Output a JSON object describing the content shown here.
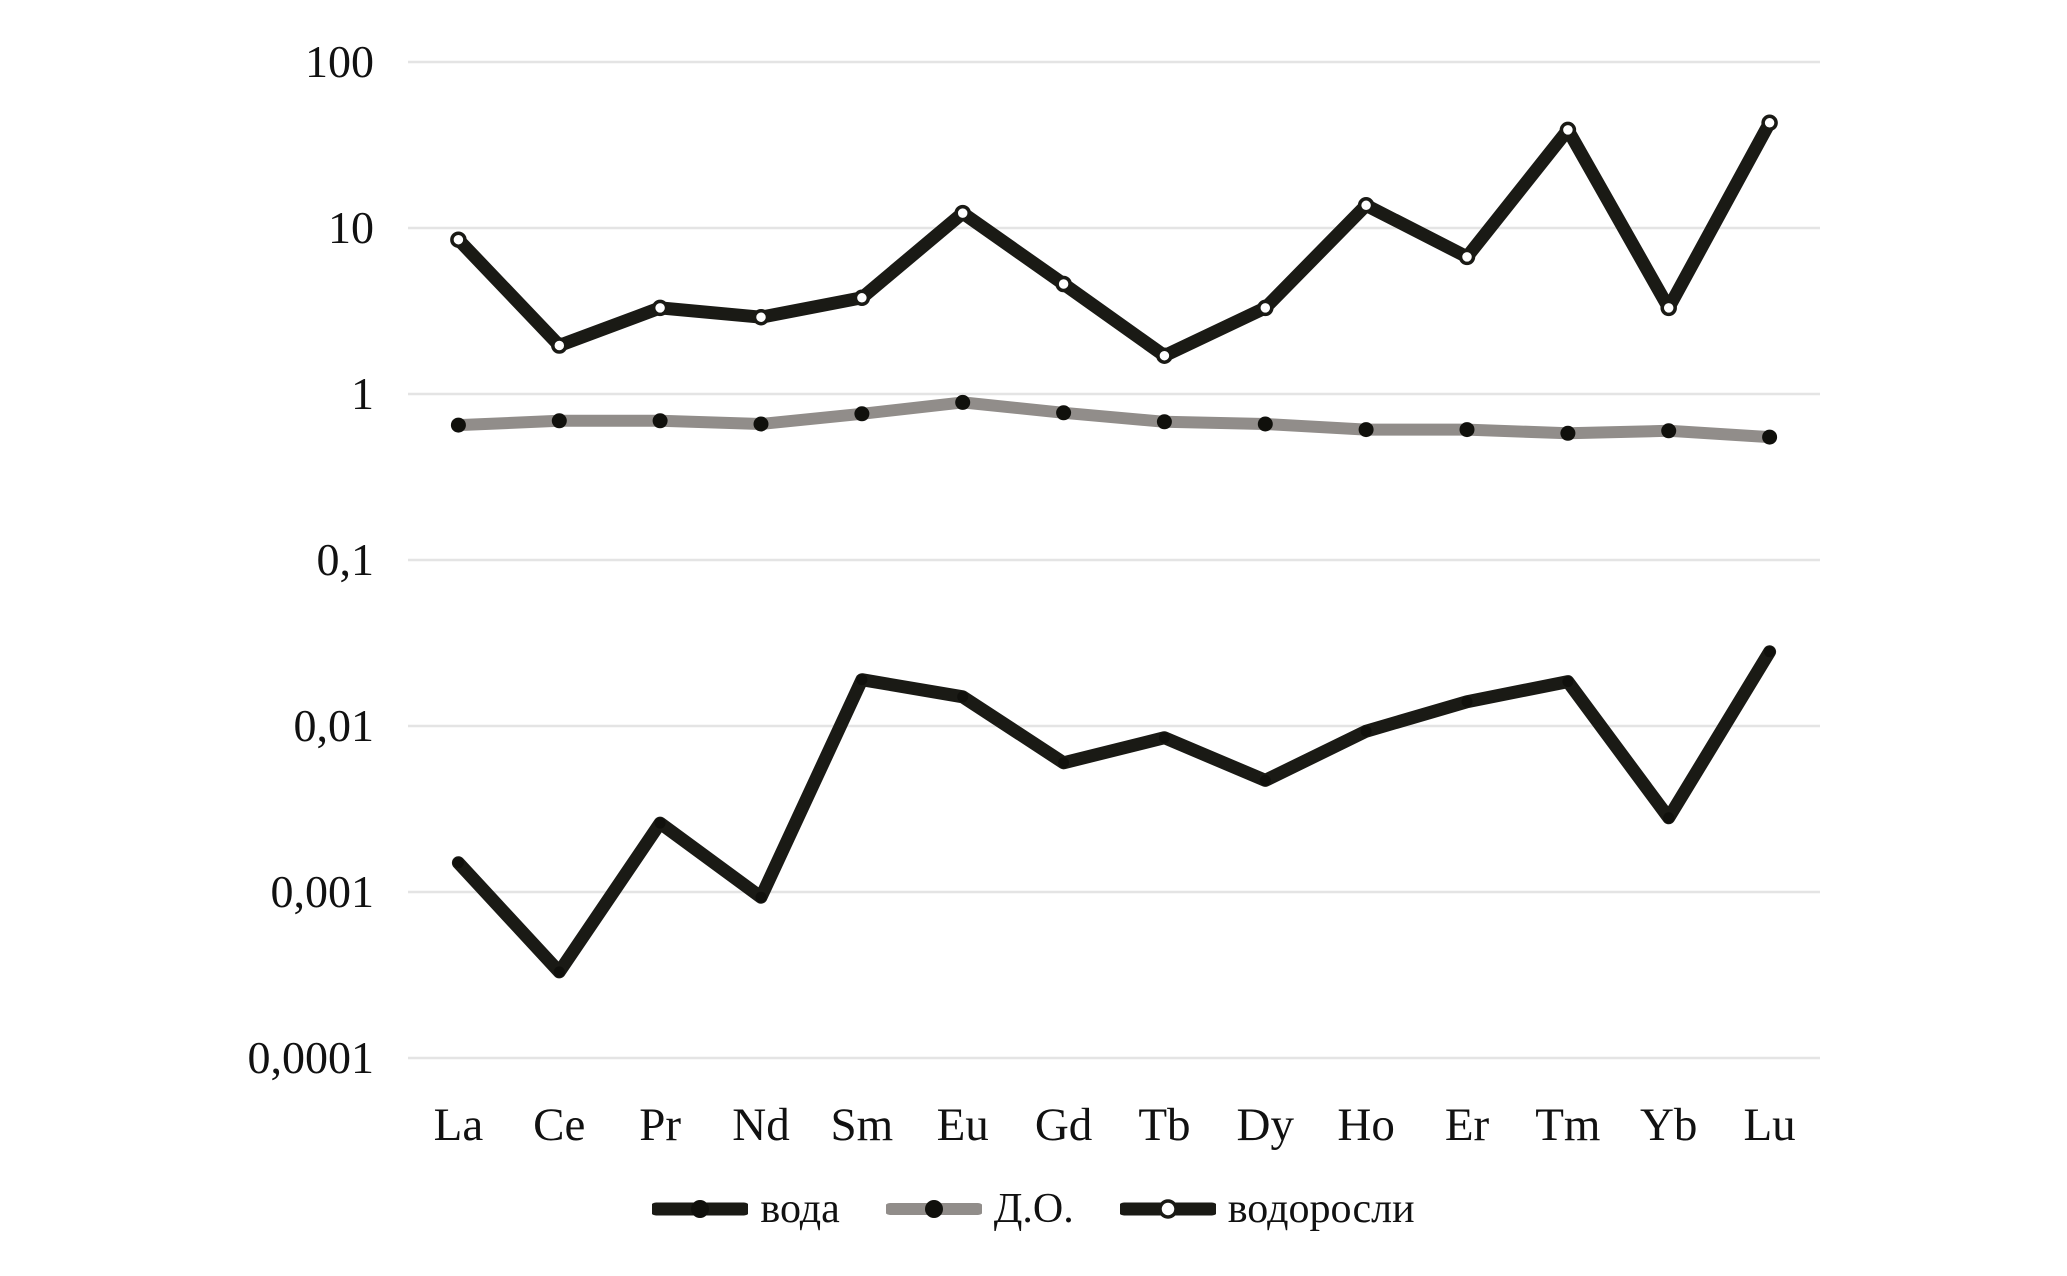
{
  "chart_data": {
    "type": "line",
    "title": "",
    "xlabel": "",
    "ylabel": "",
    "y_scale": "log",
    "grid": "horizontal-only",
    "gridline_color": "#e4e4e4",
    "background": "#ffffff",
    "categories": [
      "La",
      "Ce",
      "Pr",
      "Nd",
      "Sm",
      "Eu",
      "Gd",
      "Tb",
      "Dy",
      "Ho",
      "Er",
      "Tm",
      "Yb",
      "Lu"
    ],
    "series": [
      {
        "name": "вода",
        "color": "#1a1a15",
        "line_width": 13,
        "marker": {
          "shape": "dot",
          "radius": 5.5,
          "fill": "#10100c",
          "ring": "#10100c",
          "ring_width": 0,
          "legend_radius": 9
        },
        "values": [
          0.0015,
          0.00033,
          0.0026,
          0.00093,
          0.019,
          0.015,
          0.006,
          0.0085,
          0.0047,
          0.0093,
          0.014,
          0.0185,
          0.0028,
          0.028
        ]
      },
      {
        "name": "Д.О.",
        "color": "#918d8a",
        "line_width": 12,
        "marker": {
          "shape": "dot",
          "radius": 7.5,
          "fill": "#10100c",
          "ring": "#10100c",
          "ring_width": 0,
          "legend_radius": 9
        },
        "values": [
          0.65,
          0.69,
          0.69,
          0.66,
          0.76,
          0.89,
          0.77,
          0.68,
          0.66,
          0.61,
          0.61,
          0.58,
          0.6,
          0.55
        ]
      },
      {
        "name": "водоросли",
        "color": "#1a1a15",
        "line_width": 13,
        "marker": {
          "shape": "open-circle",
          "radius": 6.5,
          "fill": "#ffffff",
          "ring": "#1a1a15",
          "ring_width": 3.5,
          "legend_radius": 8
        },
        "values": [
          8.5,
          1.96,
          3.3,
          2.9,
          3.8,
          12.3,
          4.6,
          1.7,
          3.3,
          13.7,
          6.7,
          39,
          3.3,
          43
        ]
      }
    ],
    "y_axis": {
      "min": 0.0001,
      "max": 100,
      "tick_labels": [
        "100",
        "10",
        "1",
        "0,1",
        "0,01",
        "0,001",
        "0,0001"
      ],
      "tick_values": [
        100,
        10,
        1,
        0.1,
        0.01,
        0.001,
        0.0001
      ],
      "decimal_separator": ","
    },
    "legend": {
      "position": "bottom-center",
      "items": [
        "вода",
        "Д.О.",
        "водоросли"
      ]
    }
  }
}
